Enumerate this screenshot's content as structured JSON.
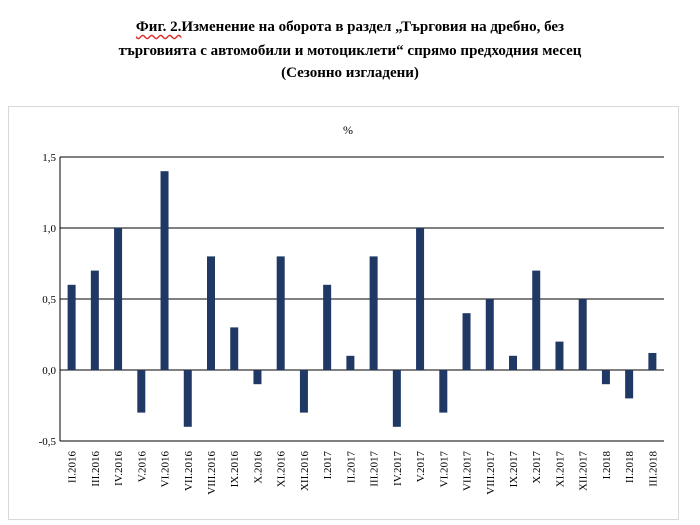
{
  "title": {
    "fig_label": "Фиг. 2.",
    "line1_rest": "Изменение на оборота в раздел „Търговия на дребно, без",
    "line2": "търговията с автомобили и мотоциклети“ спрямо предходния месец",
    "line3": "(Сезонно изгладени)"
  },
  "chart_data": {
    "type": "bar",
    "title": "Фиг. 2.Изменение на оборота в раздел „Търговия на дребно, без търговията с автомобили и мотоциклети“ спрямо предходния месец (Сезонно изгладени)",
    "unit_label": "%",
    "xlabel": "",
    "ylabel": "",
    "ylim": [
      -0.5,
      1.5
    ],
    "yticks": [
      -0.5,
      0.0,
      0.5,
      1.0,
      1.5
    ],
    "ytick_labels": [
      "-0,5",
      "0,0",
      "0,5",
      "1,0",
      "1,5"
    ],
    "grid": true,
    "bar_color": "#1f3864",
    "categories": [
      "II.2016",
      "III.2016",
      "IV.2016",
      "V.2016",
      "VI.2016",
      "VII.2016",
      "VIII.2016",
      "IX.2016",
      "X.2016",
      "XI.2016",
      "XII.2016",
      "I.2017",
      "II.2017",
      "III.2017",
      "IV.2017",
      "V.2017",
      "VI.2017",
      "VII.2017",
      "VIII.2017",
      "IX.2017",
      "X.2017",
      "XI.2017",
      "XII.2017",
      "I.2018",
      "II.2018",
      "III.2018"
    ],
    "values": [
      0.6,
      0.7,
      1.0,
      -0.3,
      1.4,
      -0.4,
      0.8,
      0.3,
      -0.1,
      0.8,
      -0.3,
      0.6,
      0.1,
      0.8,
      -0.4,
      1.0,
      -0.3,
      0.4,
      0.5,
      0.1,
      0.7,
      0.2,
      0.5,
      -0.1,
      -0.2,
      0.12
    ]
  }
}
